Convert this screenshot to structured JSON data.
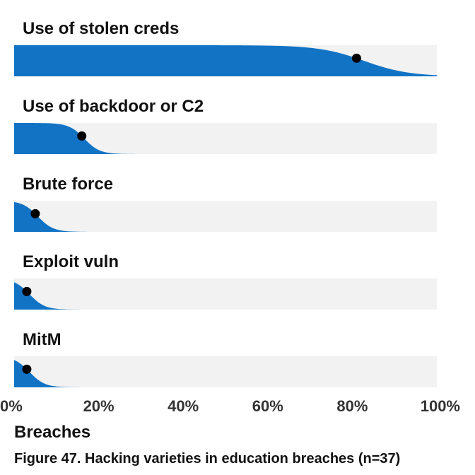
{
  "chart_data": {
    "type": "area",
    "title": "",
    "caption": "Figure 47. Hacking varieties in education breaches (n=37)",
    "xlabel": "Breaches",
    "ylabel": "",
    "xlim": [
      0,
      100
    ],
    "x_unit": "%",
    "x_ticks": [
      "0%",
      "20%",
      "40%",
      "60%",
      "80%",
      "100%"
    ],
    "grid": false,
    "legend": "none",
    "colors": {
      "fill": "#1273c5",
      "track": "#f2f2f2",
      "point": "#000000"
    },
    "series": [
      {
        "name": "Use of stolen creds",
        "value": 81
      },
      {
        "name": "Use of backdoor or C2",
        "value": 16
      },
      {
        "name": "Brute force",
        "value": 5
      },
      {
        "name": "Exploit vuln",
        "value": 3
      },
      {
        "name": "MitM",
        "value": 3
      }
    ]
  }
}
